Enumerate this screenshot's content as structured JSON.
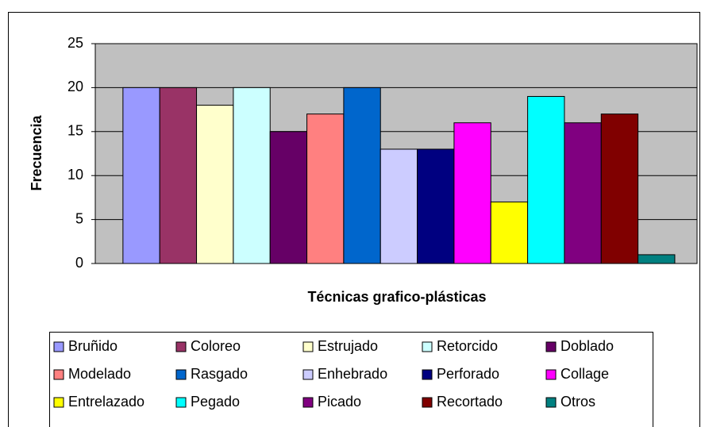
{
  "chart_data": {
    "type": "bar",
    "y_label": "Frecuencia",
    "x_label": "Técnicas grafico-plásticas",
    "categories": [
      null
    ],
    "series": [
      {
        "name": "Bruñido",
        "color": "#9999ff",
        "values": [
          20
        ]
      },
      {
        "name": "Coloreo",
        "color": "#993366",
        "values": [
          20
        ]
      },
      {
        "name": "Estrujado",
        "color": "#ffffcc",
        "values": [
          18
        ]
      },
      {
        "name": "Retorcido",
        "color": "#ccffff",
        "values": [
          20
        ]
      },
      {
        "name": "Doblado",
        "color": "#660066",
        "values": [
          15
        ]
      },
      {
        "name": "Modelado",
        "color": "#ff8080",
        "values": [
          17
        ]
      },
      {
        "name": "Rasgado",
        "color": "#0066cc",
        "values": [
          20
        ]
      },
      {
        "name": "Enhebrado",
        "color": "#ccccff",
        "values": [
          13
        ]
      },
      {
        "name": "Perforado",
        "color": "#000080",
        "values": [
          13
        ]
      },
      {
        "name": "Collage",
        "color": "#ff00ff",
        "values": [
          16
        ]
      },
      {
        "name": "Entrelazado",
        "color": "#ffff00",
        "values": [
          7
        ]
      },
      {
        "name": "Pegado",
        "color": "#00ffff",
        "values": [
          19
        ]
      },
      {
        "name": "Picado",
        "color": "#800080",
        "values": [
          16
        ]
      },
      {
        "name": "Recortado",
        "color": "#800000",
        "values": [
          17
        ]
      },
      {
        "name": "Otros",
        "color": "#008080",
        "values": [
          1
        ]
      }
    ],
    "ylim": [
      0,
      25
    ],
    "yticks": [
      0,
      5,
      10,
      15,
      20,
      25
    ],
    "grid": true,
    "legend": "bottom"
  }
}
